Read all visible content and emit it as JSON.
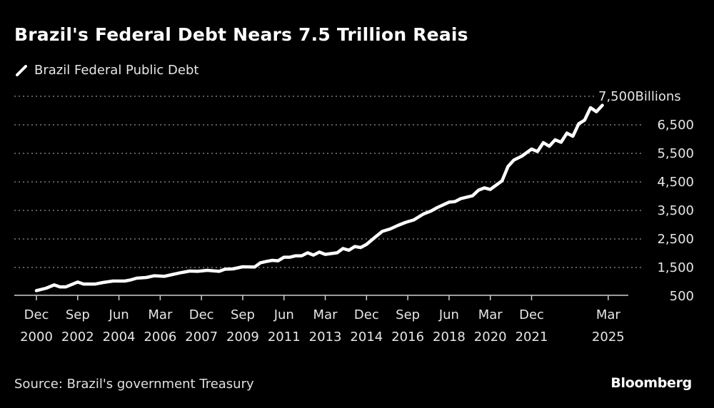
{
  "title": "Brazil's Federal Debt Nears 7.5 Trillion Reais",
  "source": "Source: Brazil's government Treasury",
  "logo": "Bloomberg",
  "chart_data": {
    "type": "line",
    "title": "Brazil's Federal Debt Nears 7.5 Trillion Reais",
    "ylabel": "Billions",
    "ylim": [
      500,
      7500
    ],
    "yticks": [
      500,
      1500,
      2500,
      3500,
      4500,
      5500,
      6500,
      7500
    ],
    "ytick_labels": [
      "500",
      "1,500",
      "2,500",
      "3,500",
      "4,500",
      "5,500",
      "6,500",
      "7,500"
    ],
    "y_unit_label": "Billions",
    "xticks": [
      "2000-12",
      "2002-09",
      "2004-06",
      "2006-03",
      "2007-12",
      "2009-09",
      "2011-06",
      "2013-03",
      "2014-12",
      "2016-09",
      "2018-06",
      "2020-03",
      "2021-12",
      "2025-03"
    ],
    "xtick_labels": [
      [
        "Dec",
        "2000"
      ],
      [
        "Sep",
        "2002"
      ],
      [
        "Jun",
        "2004"
      ],
      [
        "Mar",
        "2006"
      ],
      [
        "Dec",
        "2007"
      ],
      [
        "Sep",
        "2009"
      ],
      [
        "Jun",
        "2011"
      ],
      [
        "Mar",
        "2013"
      ],
      [
        "Dec",
        "2014"
      ],
      [
        "Sep",
        "2016"
      ],
      [
        "Jun",
        "2018"
      ],
      [
        "Mar",
        "2020"
      ],
      [
        "Dec",
        "2021"
      ],
      [
        "Mar",
        "2025"
      ]
    ],
    "grid": true,
    "legend_position": "top-left",
    "colors": {
      "background": "#000000",
      "line": "#ffffff",
      "grid": "#7a7a7a"
    },
    "series": [
      {
        "name": "Brazil Federal Public Debt",
        "x": [
          "2000-12",
          "2001-05",
          "2001-09",
          "2001-12",
          "2002-03",
          "2002-09",
          "2002-12",
          "2003-06",
          "2003-10",
          "2004-03",
          "2004-09",
          "2004-12",
          "2005-03",
          "2005-08",
          "2005-12",
          "2006-05",
          "2006-09",
          "2007-01",
          "2007-06",
          "2007-10",
          "2008-03",
          "2008-09",
          "2008-12",
          "2009-04",
          "2009-09",
          "2010-03",
          "2010-06",
          "2010-09",
          "2010-12",
          "2011-03",
          "2011-06",
          "2011-09",
          "2011-12",
          "2012-03",
          "2012-06",
          "2012-09",
          "2012-12",
          "2013-03",
          "2013-09",
          "2013-12",
          "2014-03",
          "2014-06",
          "2014-09",
          "2014-12",
          "2015-04",
          "2015-08",
          "2015-12",
          "2016-04",
          "2016-08",
          "2016-12",
          "2017-05",
          "2017-09",
          "2017-12",
          "2018-06",
          "2018-09",
          "2018-12",
          "2019-06",
          "2019-09",
          "2019-12",
          "2020-03",
          "2020-09",
          "2020-12",
          "2021-03",
          "2021-07",
          "2021-12",
          "2022-03",
          "2022-06",
          "2022-09",
          "2022-12",
          "2023-03",
          "2023-06",
          "2023-09",
          "2023-12",
          "2024-03",
          "2024-06",
          "2024-09",
          "2024-12"
        ],
        "values": [
          690,
          775,
          890,
          820,
          820,
          990,
          920,
          920,
          975,
          1025,
          1025,
          1065,
          1125,
          1150,
          1210,
          1190,
          1250,
          1310,
          1375,
          1365,
          1400,
          1365,
          1440,
          1450,
          1525,
          1515,
          1665,
          1710,
          1750,
          1735,
          1860,
          1860,
          1910,
          1910,
          2015,
          1935,
          2040,
          1960,
          2015,
          2165,
          2105,
          2235,
          2200,
          2310,
          2540,
          2765,
          2850,
          2975,
          3085,
          3165,
          3375,
          3485,
          3600,
          3790,
          3810,
          3915,
          4015,
          4210,
          4290,
          4235,
          4540,
          5040,
          5265,
          5400,
          5650,
          5565,
          5875,
          5750,
          5975,
          5890,
          6210,
          6100,
          6540,
          6665,
          7100,
          6960,
          7185
        ]
      }
    ]
  }
}
